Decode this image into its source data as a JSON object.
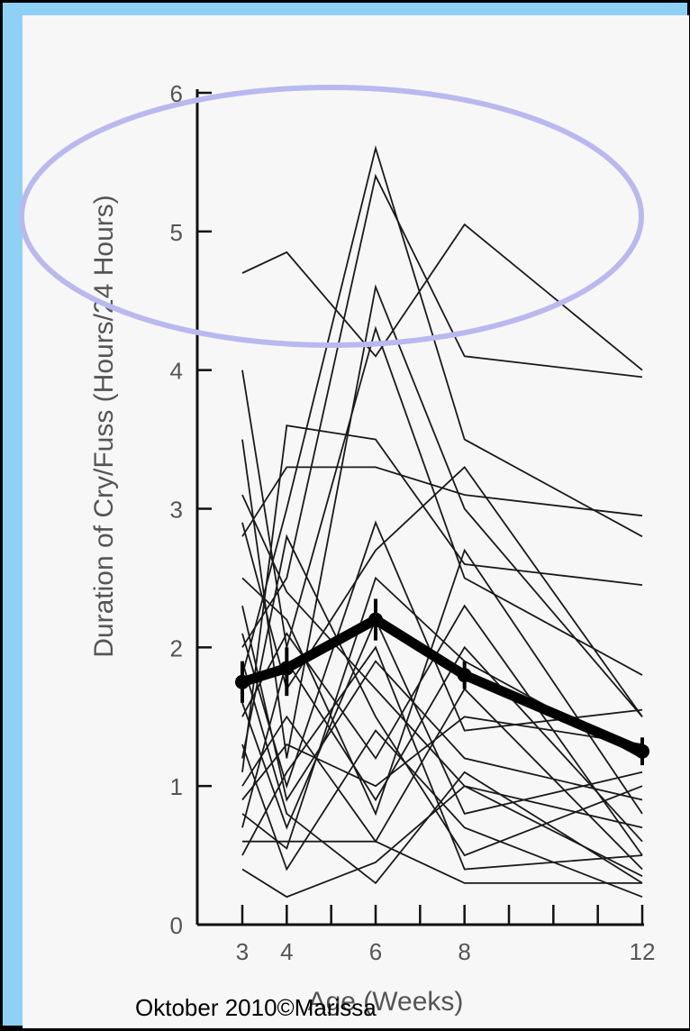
{
  "chart_data": {
    "type": "line",
    "title": "",
    "xlabel": "Age (Weeks)",
    "ylabel": "Duration of Cry/Fuss (Hours/24 Hours)",
    "x_ticks": [
      3,
      4,
      6,
      8,
      12
    ],
    "y_ticks": [
      0,
      1,
      2,
      3,
      4,
      5,
      6
    ],
    "xlim": [
      3,
      12
    ],
    "ylim": [
      0,
      6
    ],
    "grid": false,
    "legend": "none",
    "mean_series": {
      "x": [
        3,
        4,
        6,
        8,
        12
      ],
      "values": [
        1.75,
        1.85,
        2.2,
        1.8,
        1.25
      ],
      "error_low": [
        1.6,
        1.65,
        2.05,
        1.7,
        1.15
      ],
      "error_high": [
        1.9,
        2.0,
        2.35,
        1.9,
        1.35
      ]
    },
    "individual_series": [
      {
        "x": [
          3,
          4,
          6,
          8,
          12
        ],
        "values": [
          4.7,
          4.85,
          4.1,
          5.05,
          4.0
        ]
      },
      {
        "x": [
          3,
          4,
          6,
          8,
          12
        ],
        "values": [
          1.8,
          3.0,
          5.6,
          3.5,
          2.8
        ]
      },
      {
        "x": [
          3,
          4,
          6,
          8,
          12
        ],
        "values": [
          2.0,
          2.5,
          5.4,
          4.1,
          3.95
        ]
      },
      {
        "x": [
          3,
          4,
          6,
          8,
          12
        ],
        "values": [
          3.5,
          1.2,
          4.6,
          3.0,
          1.5
        ]
      },
      {
        "x": [
          3,
          4,
          6,
          8,
          12
        ],
        "values": [
          4.0,
          2.0,
          4.3,
          2.5,
          1.8
        ]
      },
      {
        "x": [
          3,
          4,
          6,
          8,
          12
        ],
        "values": [
          2.8,
          3.3,
          3.3,
          3.1,
          2.95
        ]
      },
      {
        "x": [
          3,
          4,
          6,
          8,
          12
        ],
        "values": [
          1.1,
          3.6,
          3.5,
          2.6,
          2.45
        ]
      },
      {
        "x": [
          3,
          4,
          6,
          8,
          12
        ],
        "values": [
          2.9,
          1.7,
          2.7,
          3.3,
          1.5
        ]
      },
      {
        "x": [
          3,
          4,
          6,
          8,
          12
        ],
        "values": [
          1.5,
          2.1,
          1.2,
          2.3,
          0.5
        ]
      },
      {
        "x": [
          3,
          4,
          6,
          8,
          12
        ],
        "values": [
          0.8,
          0.55,
          2.5,
          1.9,
          1.2
        ]
      },
      {
        "x": [
          3,
          4,
          6,
          8,
          12
        ],
        "values": [
          1.0,
          1.5,
          0.6,
          1.7,
          0.4
        ]
      },
      {
        "x": [
          3,
          4,
          6,
          8,
          12
        ],
        "values": [
          2.3,
          0.9,
          1.9,
          1.2,
          0.9
        ]
      },
      {
        "x": [
          3,
          4,
          6,
          8,
          12
        ],
        "values": [
          0.6,
          0.6,
          0.6,
          0.3,
          0.3
        ]
      },
      {
        "x": [
          3,
          4,
          6,
          8,
          12
        ],
        "values": [
          0.4,
          0.2,
          0.45,
          1.0,
          0.35
        ]
      },
      {
        "x": [
          3,
          4,
          6,
          8,
          12
        ],
        "values": [
          1.2,
          2.8,
          1.5,
          0.5,
          1.0
        ]
      },
      {
        "x": [
          3,
          4,
          6,
          8,
          12
        ],
        "values": [
          2.1,
          1.0,
          2.9,
          1.4,
          1.55
        ]
      },
      {
        "x": [
          3,
          4,
          6,
          8,
          12
        ],
        "values": [
          0.7,
          1.9,
          0.9,
          2.0,
          0.6
        ]
      },
      {
        "x": [
          3,
          4,
          6,
          8,
          12
        ],
        "values": [
          1.6,
          0.7,
          2.2,
          0.8,
          1.1
        ]
      },
      {
        "x": [
          3,
          4,
          6,
          8,
          12
        ],
        "values": [
          3.1,
          2.4,
          1.7,
          1.0,
          0.7
        ]
      },
      {
        "x": [
          3,
          4,
          6,
          8,
          12
        ],
        "values": [
          0.9,
          1.3,
          1.0,
          1.5,
          1.3
        ]
      },
      {
        "x": [
          3,
          4,
          6,
          8,
          12
        ],
        "values": [
          1.3,
          0.4,
          1.4,
          0.7,
          0.2
        ]
      },
      {
        "x": [
          3,
          4,
          6,
          8,
          12
        ],
        "values": [
          2.5,
          2.2,
          0.8,
          2.7,
          0.8
        ]
      },
      {
        "x": [
          3,
          4,
          6,
          8,
          12
        ],
        "values": [
          0.5,
          1.1,
          2.0,
          0.4,
          0.5
        ]
      },
      {
        "x": [
          3,
          4,
          6,
          8,
          12
        ],
        "values": [
          1.9,
          0.8,
          0.3,
          1.1,
          0.3
        ]
      }
    ]
  },
  "footer": {
    "text": "Oktober 2010©Marissa"
  }
}
